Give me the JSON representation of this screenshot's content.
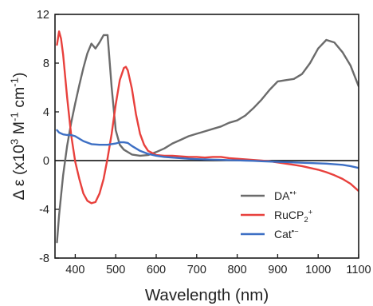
{
  "chart_data": {
    "type": "line",
    "xlabel": "Wavelength (nm)",
    "ylabel": {
      "parts": [
        {
          "text": "Δ ε (x10",
          "shift": "base"
        },
        {
          "text": "3",
          "shift": "super"
        },
        {
          "text": " M",
          "shift": "base"
        },
        {
          "text": "-1",
          "shift": "super"
        },
        {
          "text": " cm",
          "shift": "base"
        },
        {
          "text": "-1",
          "shift": "super"
        },
        {
          "text": ")",
          "shift": "base"
        }
      ]
    },
    "xlim": [
      350,
      1100
    ],
    "ylim": [
      -8,
      12
    ],
    "xticks": [
      400,
      500,
      600,
      700,
      800,
      900,
      1000,
      1100
    ],
    "yticks": [
      -8,
      -4,
      0,
      4,
      8,
      12
    ],
    "grid": false,
    "zero_line": true,
    "legend_position": "bottom-right",
    "series": [
      {
        "name": "DA•+",
        "legend_parts": [
          {
            "text": "DA",
            "shift": "base"
          },
          {
            "text": "•+",
            "shift": "super"
          }
        ],
        "color": "#6b6b6b",
        "x": [
          355,
          360,
          370,
          380,
          390,
          400,
          410,
          420,
          430,
          440,
          450,
          460,
          470,
          480,
          490,
          500,
          510,
          520,
          540,
          560,
          580,
          600,
          620,
          640,
          660,
          680,
          700,
          720,
          740,
          760,
          780,
          800,
          820,
          840,
          860,
          880,
          900,
          920,
          940,
          960,
          980,
          1000,
          1020,
          1040,
          1060,
          1080,
          1100
        ],
        "y": [
          -6.7,
          -4.5,
          -1.2,
          1.2,
          3.1,
          4.7,
          6.2,
          7.6,
          8.8,
          9.6,
          9.2,
          9.7,
          10.3,
          10.3,
          6.0,
          2.5,
          1.3,
          0.9,
          0.5,
          0.4,
          0.45,
          0.7,
          1.0,
          1.4,
          1.7,
          2.0,
          2.2,
          2.4,
          2.6,
          2.8,
          3.1,
          3.3,
          3.7,
          4.3,
          5.0,
          5.8,
          6.5,
          6.6,
          6.7,
          7.1,
          8.0,
          9.2,
          9.9,
          9.7,
          8.9,
          7.8,
          6.1
        ]
      },
      {
        "name": "RuCP2+",
        "legend_parts": [
          {
            "text": "RuCP",
            "shift": "base"
          },
          {
            "text": "2",
            "shift": "sub"
          },
          {
            "text": "+",
            "shift": "super"
          }
        ],
        "color": "#e8403c",
        "x": [
          355,
          360,
          365,
          370,
          380,
          390,
          400,
          410,
          420,
          430,
          440,
          450,
          460,
          470,
          480,
          490,
          500,
          510,
          520,
          525,
          530,
          540,
          550,
          560,
          570,
          580,
          600,
          620,
          640,
          660,
          680,
          700,
          720,
          740,
          760,
          780,
          800,
          820,
          840,
          860,
          880,
          900,
          920,
          940,
          960,
          980,
          1000,
          1020,
          1040,
          1060,
          1080,
          1100
        ],
        "y": [
          9.5,
          10.6,
          10.0,
          8.7,
          5.2,
          2.1,
          -0.1,
          -1.5,
          -2.7,
          -3.3,
          -3.5,
          -3.4,
          -2.7,
          -1.5,
          0.2,
          2.2,
          4.6,
          6.6,
          7.6,
          7.7,
          7.4,
          5.9,
          3.8,
          2.2,
          1.3,
          0.8,
          0.45,
          0.4,
          0.4,
          0.35,
          0.3,
          0.3,
          0.25,
          0.3,
          0.3,
          0.2,
          0.15,
          0.1,
          0.05,
          0.0,
          -0.05,
          -0.15,
          -0.25,
          -0.35,
          -0.45,
          -0.6,
          -0.75,
          -0.95,
          -1.2,
          -1.5,
          -1.9,
          -2.5
        ]
      },
      {
        "name": "Cat•−",
        "legend_parts": [
          {
            "text": "Cat",
            "shift": "base"
          },
          {
            "text": "•−",
            "shift": "super"
          }
        ],
        "color": "#3d6fc4",
        "x": [
          355,
          360,
          370,
          380,
          390,
          400,
          420,
          440,
          460,
          480,
          500,
          510,
          520,
          530,
          540,
          560,
          580,
          600,
          620,
          640,
          660,
          680,
          700,
          720,
          740,
          760,
          780,
          800,
          820,
          840,
          860,
          880,
          900,
          920,
          940,
          960,
          980,
          1000,
          1020,
          1040,
          1060,
          1080,
          1100
        ],
        "y": [
          2.5,
          2.3,
          2.15,
          2.1,
          2.1,
          2.0,
          1.6,
          1.35,
          1.3,
          1.3,
          1.4,
          1.5,
          1.5,
          1.45,
          1.2,
          0.8,
          0.55,
          0.4,
          0.3,
          0.25,
          0.2,
          0.15,
          0.12,
          0.1,
          0.08,
          0.06,
          0.04,
          0.02,
          0.0,
          -0.02,
          -0.05,
          -0.08,
          -0.1,
          -0.12,
          -0.15,
          -0.18,
          -0.2,
          -0.22,
          -0.25,
          -0.3,
          -0.35,
          -0.45,
          -0.6
        ]
      }
    ]
  }
}
